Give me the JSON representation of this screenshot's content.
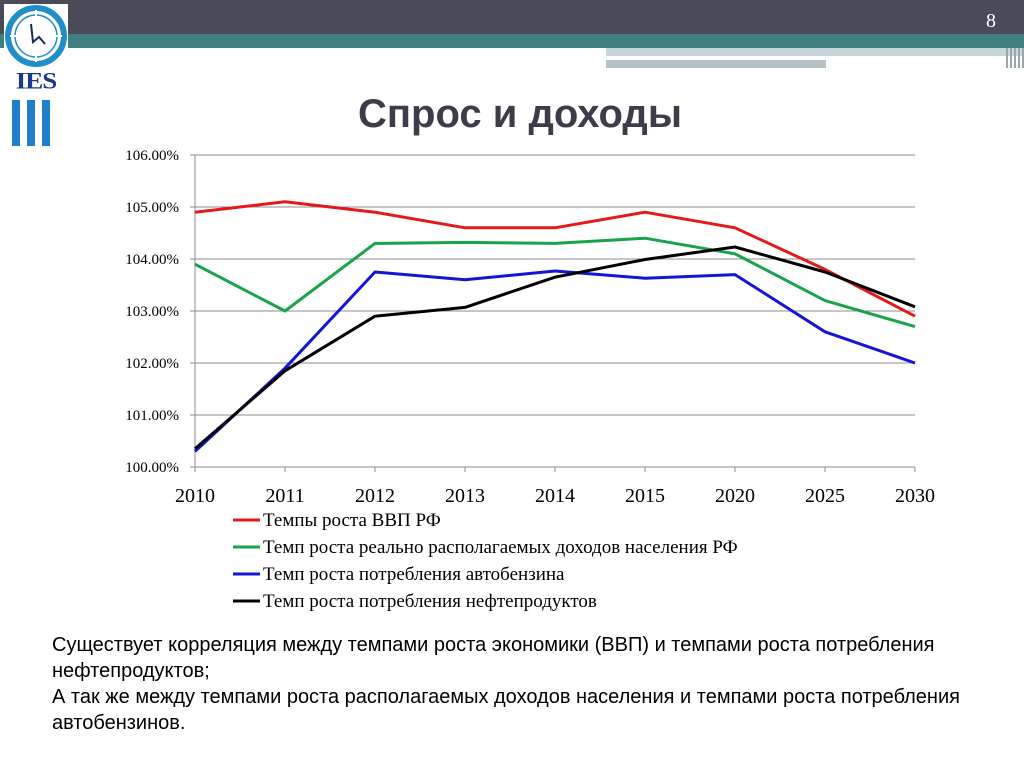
{
  "slide": {
    "page_number": "8",
    "title": "Спрос и доходы",
    "logo_text": "IES"
  },
  "colors": {
    "gdp": "#e31a1c",
    "income": "#1aa34a",
    "gasoline": "#1515d6",
    "oil_products": "#000000"
  },
  "chart_data": {
    "type": "line",
    "title": "",
    "xlabel": "",
    "ylabel": "",
    "categories": [
      "2010",
      "2011",
      "2012",
      "2013",
      "2014",
      "2015",
      "2020",
      "2025",
      "2030"
    ],
    "ylim": [
      100.0,
      106.0
    ],
    "yticks": [
      "100.00%",
      "101.00%",
      "102.00%",
      "103.00%",
      "104.00%",
      "105.00%",
      "106.00%"
    ],
    "grid": true,
    "legend_position": "bottom",
    "series": [
      {
        "name": "Темпы роста ВВП РФ",
        "color": "#e31a1c",
        "values": [
          104.9,
          105.1,
          104.9,
          104.6,
          104.6,
          104.9,
          104.6,
          103.8,
          102.9
        ]
      },
      {
        "name": "Темп роста реально располагаемых доходов населения  РФ",
        "color": "#1aa34a",
        "values": [
          103.9,
          103.0,
          104.3,
          104.32,
          104.3,
          104.4,
          104.1,
          103.2,
          102.7
        ]
      },
      {
        "name": "Темп роста потребления автобензина",
        "color": "#1515d6",
        "values": [
          100.3,
          101.9,
          103.75,
          103.6,
          103.77,
          103.63,
          103.7,
          102.6,
          102.0
        ]
      },
      {
        "name": "Темп роста потребления нефтепродуктов",
        "color": "#000000",
        "values": [
          100.35,
          101.85,
          102.9,
          103.07,
          103.65,
          103.99,
          104.23,
          103.75,
          103.08
        ]
      }
    ]
  },
  "caption": {
    "line1": "Существует корреляция между темпами роста экономики (ВВП) и темпами роста потребления нефтепродуктов;",
    "line2": "А так же между темпами роста располагаемых доходов населения и темпами роста потребления автобензинов."
  }
}
